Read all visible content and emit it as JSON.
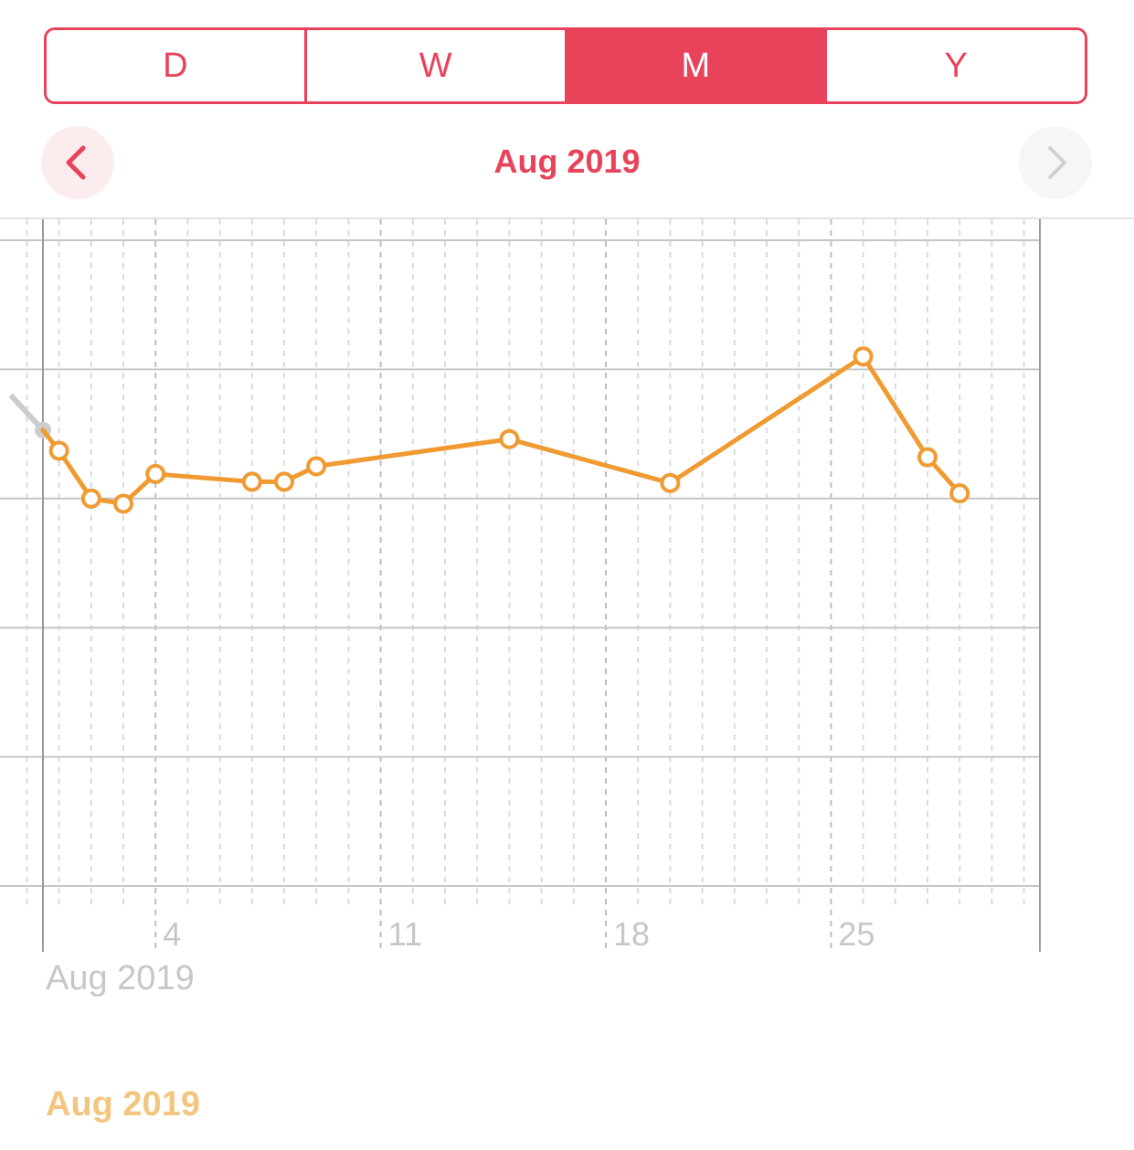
{
  "segments": [
    {
      "label": "D",
      "active": false
    },
    {
      "label": "W",
      "active": false
    },
    {
      "label": "M",
      "active": true
    },
    {
      "label": "Y",
      "active": false
    }
  ],
  "nav": {
    "title": "Aug 2019",
    "prev_icon": "chevron-left-icon",
    "next_icon": "chevron-right-icon"
  },
  "colors": {
    "accent": "#e8435a",
    "series": "#f09a32",
    "previous_series": "#cccccc",
    "grid": "#c6c6c6",
    "tick_text": "#c7c7c7",
    "series_date_text": "#f3c680"
  },
  "range_label": "Aug 2019",
  "series_date_label": "Aug 2019",
  "chart_data": {
    "type": "line",
    "x_unit": "day of month",
    "x_ticks": [
      4,
      11,
      18,
      25
    ],
    "xlim": [
      0,
      31
    ],
    "y_gridlines": 6,
    "y_tick_labels": [],
    "previous_series": {
      "x": [
        -0.5,
        0.5
      ],
      "y": [
        3.8,
        3.53
      ]
    },
    "series": [
      {
        "x": [
          1,
          2,
          3,
          4,
          7,
          8,
          9,
          15,
          20,
          26,
          28,
          29
        ],
        "y": [
          3.37,
          3.0,
          2.96,
          3.19,
          3.13,
          3.13,
          3.25,
          3.46,
          3.12,
          4.1,
          3.32,
          3.04
        ]
      }
    ]
  }
}
